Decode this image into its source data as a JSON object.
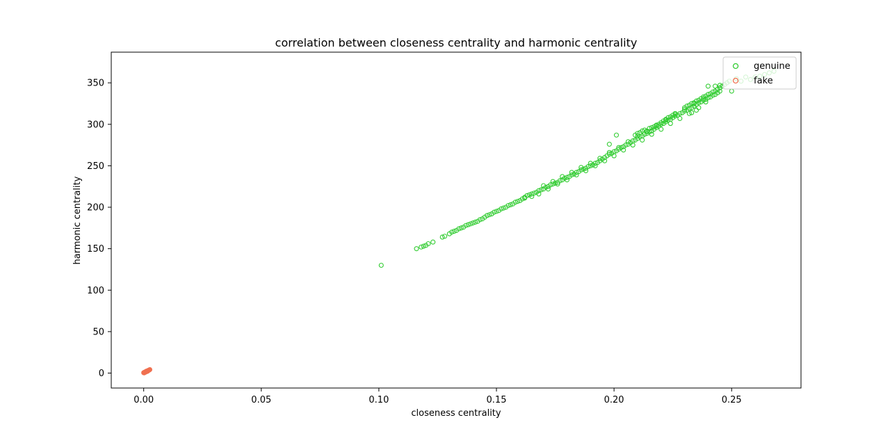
{
  "chart_data": {
    "type": "scatter",
    "title": "correlation between closeness centrality and harmonic centrality",
    "xlabel": "closeness centrality",
    "ylabel": "harmonic centrality",
    "xlim": [
      -0.0138,
      0.2795
    ],
    "ylim": [
      -18,
      387
    ],
    "x_ticks": [
      0.0,
      0.05,
      0.1,
      0.15,
      0.2,
      0.25
    ],
    "x_tick_labels": [
      "0.00",
      "0.05",
      "0.10",
      "0.15",
      "0.20",
      "0.25"
    ],
    "y_ticks": [
      0,
      50,
      100,
      150,
      200,
      250,
      300,
      350
    ],
    "y_tick_labels": [
      "0",
      "50",
      "100",
      "150",
      "200",
      "250",
      "300",
      "350"
    ],
    "grid": false,
    "legend_position": "top-right",
    "marker": "hollow-circle",
    "series": [
      {
        "name": "genuine",
        "color": "#33cc33",
        "points": [
          [
            0.101,
            130
          ],
          [
            0.116,
            150
          ],
          [
            0.118,
            152
          ],
          [
            0.119,
            153
          ],
          [
            0.12,
            154
          ],
          [
            0.121,
            156
          ],
          [
            0.123,
            158
          ],
          [
            0.127,
            164
          ],
          [
            0.128,
            165
          ],
          [
            0.13,
            168
          ],
          [
            0.131,
            170
          ],
          [
            0.133,
            172
          ],
          [
            0.134,
            174
          ],
          [
            0.136,
            176
          ],
          [
            0.137,
            178
          ],
          [
            0.139,
            180
          ],
          [
            0.14,
            181
          ],
          [
            0.142,
            183
          ],
          [
            0.143,
            185
          ],
          [
            0.145,
            188
          ],
          [
            0.146,
            190
          ],
          [
            0.148,
            192
          ],
          [
            0.149,
            194
          ],
          [
            0.151,
            196
          ],
          [
            0.152,
            198
          ],
          [
            0.154,
            200
          ],
          [
            0.155,
            202
          ],
          [
            0.157,
            204
          ],
          [
            0.158,
            206
          ],
          [
            0.16,
            208
          ],
          [
            0.161,
            210
          ],
          [
            0.162,
            212
          ],
          [
            0.163,
            214
          ],
          [
            0.164,
            215
          ],
          [
            0.165,
            216
          ],
          [
            0.166,
            217
          ],
          [
            0.167,
            218
          ],
          [
            0.168,
            220
          ],
          [
            0.169,
            221
          ],
          [
            0.17,
            222
          ],
          [
            0.171,
            224
          ],
          [
            0.172,
            225
          ],
          [
            0.173,
            227
          ],
          [
            0.174,
            228
          ],
          [
            0.175,
            229
          ],
          [
            0.176,
            230
          ],
          [
            0.177,
            232
          ],
          [
            0.178,
            233
          ],
          [
            0.179,
            235
          ],
          [
            0.18,
            236
          ],
          [
            0.181,
            237
          ],
          [
            0.182,
            239
          ],
          [
            0.183,
            240
          ],
          [
            0.184,
            242
          ],
          [
            0.185,
            243
          ],
          [
            0.186,
            245
          ],
          [
            0.187,
            246
          ],
          [
            0.188,
            247
          ],
          [
            0.189,
            249
          ],
          [
            0.19,
            250
          ],
          [
            0.191,
            251
          ],
          [
            0.192,
            253
          ],
          [
            0.193,
            254
          ],
          [
            0.194,
            256
          ],
          [
            0.195,
            258
          ],
          [
            0.196,
            260
          ],
          [
            0.197,
            262
          ],
          [
            0.198,
            264
          ],
          [
            0.199,
            265
          ],
          [
            0.2,
            267
          ],
          [
            0.201,
            268
          ],
          [
            0.202,
            270
          ],
          [
            0.203,
            272
          ],
          [
            0.204,
            273
          ],
          [
            0.205,
            275
          ],
          [
            0.206,
            276
          ],
          [
            0.207,
            278
          ],
          [
            0.208,
            280
          ],
          [
            0.209,
            281
          ],
          [
            0.21,
            283
          ],
          [
            0.211,
            285
          ],
          [
            0.212,
            286
          ],
          [
            0.213,
            288
          ],
          [
            0.214,
            289
          ],
          [
            0.215,
            291
          ],
          [
            0.216,
            292
          ],
          [
            0.217,
            294
          ],
          [
            0.218,
            296
          ],
          [
            0.219,
            298
          ],
          [
            0.22,
            300
          ],
          [
            0.221,
            301
          ],
          [
            0.222,
            303
          ],
          [
            0.223,
            305
          ],
          [
            0.224,
            306
          ],
          [
            0.225,
            308
          ],
          [
            0.226,
            310
          ],
          [
            0.227,
            311
          ],
          [
            0.228,
            313
          ],
          [
            0.229,
            314
          ],
          [
            0.23,
            316
          ],
          [
            0.231,
            317
          ],
          [
            0.232,
            319
          ],
          [
            0.233,
            320
          ],
          [
            0.234,
            322
          ],
          [
            0.235,
            324
          ],
          [
            0.236,
            326
          ],
          [
            0.237,
            327
          ],
          [
            0.238,
            329
          ],
          [
            0.239,
            330
          ],
          [
            0.24,
            332
          ],
          [
            0.241,
            333
          ],
          [
            0.242,
            335
          ],
          [
            0.243,
            336
          ],
          [
            0.244,
            338
          ],
          [
            0.245,
            340
          ],
          [
            0.168,
            216
          ],
          [
            0.172,
            222
          ],
          [
            0.176,
            228
          ],
          [
            0.18,
            233
          ],
          [
            0.184,
            239
          ],
          [
            0.188,
            244
          ],
          [
            0.192,
            250
          ],
          [
            0.196,
            256
          ],
          [
            0.2,
            262
          ],
          [
            0.204,
            269
          ],
          [
            0.208,
            275
          ],
          [
            0.212,
            281
          ],
          [
            0.216,
            288
          ],
          [
            0.22,
            294
          ],
          [
            0.224,
            301
          ],
          [
            0.228,
            307
          ],
          [
            0.232,
            313
          ],
          [
            0.236,
            320
          ],
          [
            0.17,
            226
          ],
          [
            0.174,
            231
          ],
          [
            0.178,
            237
          ],
          [
            0.182,
            242
          ],
          [
            0.186,
            248
          ],
          [
            0.19,
            253
          ],
          [
            0.194,
            259
          ],
          [
            0.198,
            266
          ],
          [
            0.202,
            272
          ],
          [
            0.206,
            279
          ],
          [
            0.21,
            286
          ],
          [
            0.214,
            292
          ],
          [
            0.218,
            299
          ],
          [
            0.222,
            305
          ],
          [
            0.226,
            312
          ],
          [
            0.23,
            318
          ],
          [
            0.234,
            325
          ],
          [
            0.238,
            331
          ],
          [
            0.209,
            287
          ],
          [
            0.21,
            289
          ],
          [
            0.211,
            290
          ],
          [
            0.212,
            292
          ],
          [
            0.213,
            293
          ],
          [
            0.214,
            291
          ],
          [
            0.215,
            295
          ],
          [
            0.216,
            296
          ],
          [
            0.217,
            297
          ],
          [
            0.218,
            298
          ],
          [
            0.219,
            300
          ],
          [
            0.22,
            302
          ],
          [
            0.221,
            304
          ],
          [
            0.222,
            306
          ],
          [
            0.223,
            308
          ],
          [
            0.224,
            309
          ],
          [
            0.225,
            311
          ],
          [
            0.226,
            313
          ],
          [
            0.198,
            276
          ],
          [
            0.201,
            287
          ],
          [
            0.23,
            320
          ],
          [
            0.231,
            322
          ],
          [
            0.232,
            323
          ],
          [
            0.233,
            325
          ],
          [
            0.234,
            326
          ],
          [
            0.235,
            328
          ],
          [
            0.236,
            329
          ],
          [
            0.237,
            331
          ],
          [
            0.238,
            333
          ],
          [
            0.239,
            334
          ],
          [
            0.24,
            336
          ],
          [
            0.241,
            337
          ],
          [
            0.242,
            339
          ],
          [
            0.243,
            340
          ],
          [
            0.244,
            342
          ],
          [
            0.245,
            344
          ],
          [
            0.246,
            346
          ],
          [
            0.247,
            348
          ],
          [
            0.248,
            350
          ],
          [
            0.249,
            352
          ],
          [
            0.25,
            340
          ],
          [
            0.252,
            355
          ],
          [
            0.254,
            352
          ],
          [
            0.256,
            357
          ],
          [
            0.258,
            354
          ],
          [
            0.26,
            357
          ],
          [
            0.262,
            358
          ],
          [
            0.264,
            360
          ],
          [
            0.266,
            362
          ],
          [
            0.268,
            364
          ],
          [
            0.24,
            346
          ],
          [
            0.243,
            346
          ],
          [
            0.245,
            347
          ],
          [
            0.239,
            327
          ],
          [
            0.235,
            317
          ],
          [
            0.233,
            314
          ],
          [
            0.15,
            195
          ],
          [
            0.153,
            199
          ],
          [
            0.156,
            203
          ],
          [
            0.159,
            207
          ],
          [
            0.162,
            211
          ],
          [
            0.165,
            213
          ],
          [
            0.141,
            182
          ],
          [
            0.144,
            186
          ],
          [
            0.147,
            191
          ],
          [
            0.135,
            175
          ],
          [
            0.138,
            179
          ],
          [
            0.132,
            171
          ]
        ]
      },
      {
        "name": "fake",
        "color": "#f07050",
        "points": [
          [
            0.0,
            0.5
          ],
          [
            0.0003,
            0.8
          ],
          [
            0.0005,
            1.0
          ],
          [
            0.0007,
            1.2
          ],
          [
            0.0008,
            1.5
          ],
          [
            0.001,
            1.7
          ],
          [
            0.0012,
            2.0
          ],
          [
            0.0013,
            2.2
          ],
          [
            0.0015,
            2.5
          ],
          [
            0.0017,
            2.8
          ],
          [
            0.0018,
            3.0
          ],
          [
            0.002,
            3.2
          ],
          [
            0.0022,
            3.5
          ],
          [
            0.0024,
            3.8
          ],
          [
            0.0026,
            4.2
          ],
          [
            0.0002,
            0.3
          ],
          [
            0.0004,
            1.1
          ],
          [
            0.0009,
            1.3
          ],
          [
            0.0011,
            2.3
          ],
          [
            0.0016,
            2.1
          ]
        ]
      }
    ]
  }
}
